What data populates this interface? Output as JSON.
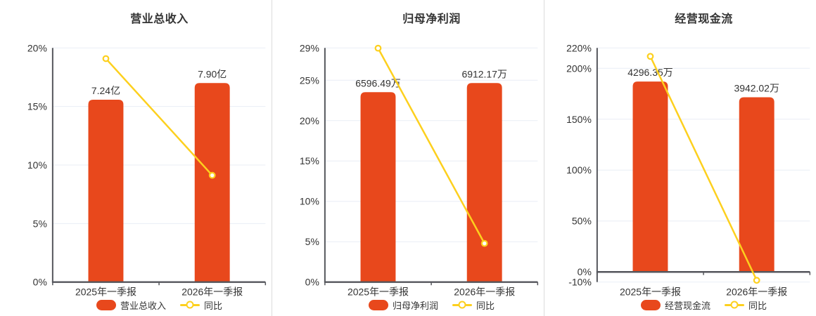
{
  "page": {
    "background": "#ffffff"
  },
  "colors": {
    "bar": "#e8481c",
    "line": "#fdd01e",
    "grid": "#e9eef6",
    "axis": "#55565c",
    "text": "#333333",
    "label": "#333333",
    "separator": "#dcdcdc"
  },
  "chart_data": [
    {
      "type": "bar+line",
      "title": "营业总收入",
      "categories": [
        "2025年一季报",
        "2026年一季报"
      ],
      "bar_series": {
        "name": "营业总收入",
        "unit": "亿",
        "values": [
          7.24,
          7.9
        ],
        "labels": [
          "7.24亿",
          "7.90亿"
        ]
      },
      "line_series": {
        "name": "同比",
        "unit": "%",
        "values": [
          19.09,
          9.12
        ]
      },
      "ylim": [
        0,
        20
      ],
      "yticks": [
        0,
        5,
        10,
        15,
        20
      ],
      "ytick_suffix": "%",
      "grid": true,
      "legend_position": "bottom"
    },
    {
      "type": "bar+line",
      "title": "归母净利润",
      "categories": [
        "2025年一季报",
        "2026年一季报"
      ],
      "bar_series": {
        "name": "归母净利润",
        "unit": "万",
        "values": [
          6596.49,
          6912.17
        ],
        "labels": [
          "6596.49万",
          "6912.17万"
        ]
      },
      "line_series": {
        "name": "同比",
        "unit": "%",
        "values": [
          28.97,
          4.79
        ]
      },
      "ylim": [
        0,
        29
      ],
      "yticks": [
        0,
        5,
        10,
        15,
        20,
        25,
        29
      ],
      "ytick_suffix": "%",
      "grid": true,
      "legend_position": "bottom"
    },
    {
      "type": "bar+line",
      "title": "经营现金流",
      "categories": [
        "2025年一季报",
        "2026年一季报"
      ],
      "bar_series": {
        "name": "经营现金流",
        "unit": "万",
        "values": [
          4296.35,
          3942.02
        ],
        "labels": [
          "4296.35万",
          "3942.02万"
        ]
      },
      "line_series": {
        "name": "同比",
        "unit": "%",
        "values": [
          211.75,
          -8.25
        ]
      },
      "ylim": [
        -10,
        220
      ],
      "yticks": [
        -10,
        0,
        50,
        100,
        150,
        200,
        220
      ],
      "ytick_suffix": "%",
      "grid": true,
      "legend_position": "bottom"
    }
  ]
}
